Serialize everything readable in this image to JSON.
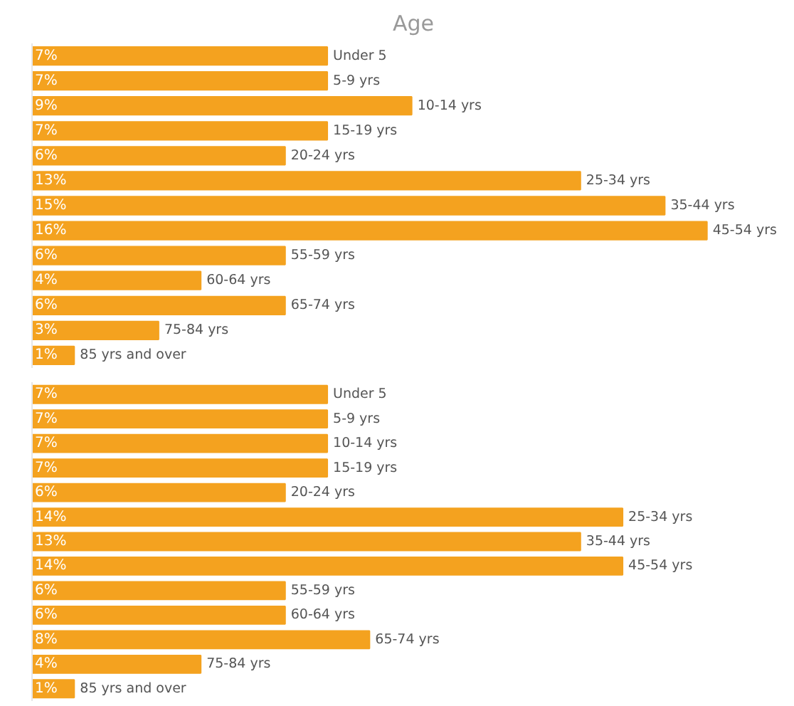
{
  "chart_data": [
    {
      "type": "bar",
      "orientation": "horizontal",
      "title": "Age",
      "categories": [
        "Under 5",
        "5-9 yrs",
        "10-14 yrs",
        "15-19 yrs",
        "20-24 yrs",
        "25-34 yrs",
        "35-44 yrs",
        "45-54 yrs",
        "55-59 yrs",
        "60-64 yrs",
        "65-74 yrs",
        "75-84 yrs",
        "85 yrs and over"
      ],
      "values": [
        7,
        7,
        9,
        7,
        6,
        13,
        15,
        16,
        6,
        4,
        6,
        3,
        1
      ],
      "value_labels": [
        "7%",
        "7%",
        "9%",
        "7%",
        "6%",
        "13%",
        "15%",
        "16%",
        "6%",
        "4%",
        "6%",
        "3%",
        "1%"
      ],
      "color": "#f4a21f",
      "tick_labels": false
    },
    {
      "type": "bar",
      "orientation": "horizontal",
      "categories": [
        "Under 5",
        "5-9 yrs",
        "10-14 yrs",
        "15-19 yrs",
        "20-24 yrs",
        "25-34 yrs",
        "35-44 yrs",
        "45-54 yrs",
        "55-59 yrs",
        "60-64 yrs",
        "65-74 yrs",
        "75-84 yrs",
        "85 yrs and over"
      ],
      "values": [
        7,
        7,
        7,
        7,
        6,
        14,
        13,
        14,
        6,
        6,
        8,
        4,
        1
      ],
      "value_labels": [
        "7%",
        "7%",
        "7%",
        "7%",
        "6%",
        "14%",
        "13%",
        "14%",
        "6%",
        "6%",
        "8%",
        "4%",
        "1%"
      ],
      "color": "#f4a21f",
      "tick_labels": false
    }
  ]
}
